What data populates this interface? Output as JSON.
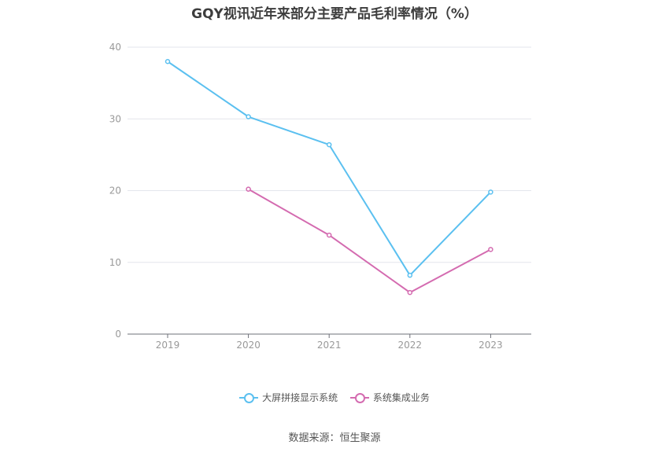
{
  "chart_data": {
    "type": "line",
    "title": "GQY视讯近年来部分主要产品毛利率情况（%）",
    "categories": [
      "2019",
      "2020",
      "2021",
      "2022",
      "2023"
    ],
    "ylim": [
      0,
      40
    ],
    "yticks": [
      0,
      10,
      20,
      30,
      40
    ],
    "grid": true,
    "legend_position": "bottom",
    "series": [
      {
        "name": "大屏拼接显示系统",
        "color": "#5bc0f0",
        "values": [
          38.0,
          30.3,
          26.4,
          8.2,
          19.8
        ]
      },
      {
        "name": "系统集成业务",
        "color": "#d46bb0",
        "values": [
          null,
          20.2,
          13.8,
          5.8,
          11.8
        ]
      }
    ]
  },
  "source_text": "数据来源：恒生聚源"
}
